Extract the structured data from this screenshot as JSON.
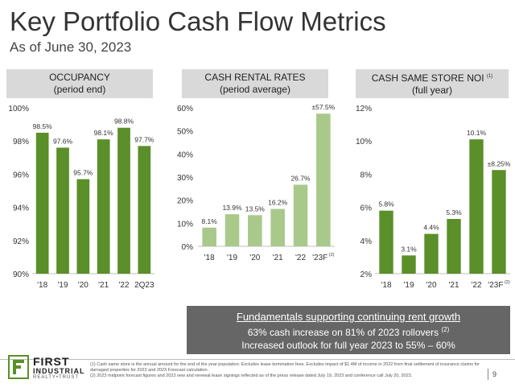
{
  "title": "Key Portfolio Cash Flow Metrics",
  "subtitle": "As of June 30, 2023",
  "colors": {
    "dark_green": "#5a8f29",
    "light_green": "#a9c98a",
    "header_gray": "#d9d9d9",
    "box_gray": "#666666"
  },
  "panels": [
    {
      "header_line1": "OCCUPANCY",
      "header_sup": "",
      "header_line2": "(period end)"
    },
    {
      "header_line1": "CASH RENTAL RATES",
      "header_sup": "",
      "header_line2": "(period average)"
    },
    {
      "header_line1": "CASH SAME STORE NOI",
      "header_sup": "(1)",
      "header_line2": "(full year)"
    }
  ],
  "chart_data": [
    {
      "type": "bar",
      "categories": [
        "'18",
        "'19",
        "'20",
        "'21",
        "'22",
        "2Q23"
      ],
      "values": [
        98.5,
        97.6,
        95.7,
        98.1,
        98.8,
        97.7
      ],
      "labels": [
        "98.5%",
        "97.6%",
        "95.7%",
        "98.1%",
        "98.8%",
        "97.7%"
      ],
      "yticks": [
        "100%",
        "98%",
        "96%",
        "94%",
        "92%",
        "90%"
      ],
      "ylim": [
        90,
        100
      ],
      "shades": [
        "dark",
        "dark",
        "dark",
        "dark",
        "dark",
        "dark"
      ]
    },
    {
      "type": "bar",
      "categories": [
        "'18",
        "'19",
        "'20",
        "'21",
        "'22",
        "'23F"
      ],
      "category_sups": [
        "",
        "",
        "",
        "",
        "",
        "(2)"
      ],
      "values": [
        8.1,
        13.9,
        13.5,
        16.2,
        26.7,
        57.5
      ],
      "labels": [
        "8.1%",
        "13.9%",
        "13.5%",
        "16.2%",
        "26.7%",
        "±57.5%"
      ],
      "yticks": [
        "60%",
        "50%",
        "40%",
        "30%",
        "20%",
        "10%",
        "0%"
      ],
      "ylim": [
        0,
        60
      ],
      "shades": [
        "light",
        "light",
        "light",
        "light",
        "light",
        "light"
      ]
    },
    {
      "type": "bar",
      "categories": [
        "'18",
        "'19",
        "'20",
        "'21",
        "'22",
        "'23F"
      ],
      "category_sups": [
        "",
        "",
        "",
        "",
        "",
        "(2)"
      ],
      "values": [
        5.8,
        3.1,
        4.4,
        5.3,
        10.1,
        8.25
      ],
      "labels": [
        "5.8%",
        "3.1%",
        "4.4%",
        "5.3%",
        "10.1%",
        "±8.25%"
      ],
      "yticks": [
        "12%",
        "10%",
        "8%",
        "6%",
        "4%",
        "2%"
      ],
      "ylim": [
        2,
        12
      ],
      "shades": [
        "dark",
        "dark",
        "dark",
        "dark",
        "dark",
        "dark"
      ]
    }
  ],
  "callout": {
    "line1": "Fundamentals supporting continuing rent growth",
    "line2": "63% cash increase on 81% of 2023 rollovers",
    "line2_sup": "(2)",
    "line3": "Increased outlook for full year 2023 to 55% – 60%"
  },
  "logo": {
    "line1": "FIRST",
    "line2": "INDUSTRIAL",
    "line3": "REALTY•TRUST"
  },
  "footnotes": [
    "(1) Cash same store is the annual amount for the end of the year population. Excludes lease termination fees. Excludes impact of $1.4M of income in 2022 from final settlement of insurance claims for damaged properties for 2022 and 2023 Forecast calculation.",
    "(2) 2023 midpoint forecast figures and 2023 new and renewal lease signings reflected as of the press release dated July 19, 2023 and conference call July 20, 2023."
  ],
  "page_number": "9"
}
